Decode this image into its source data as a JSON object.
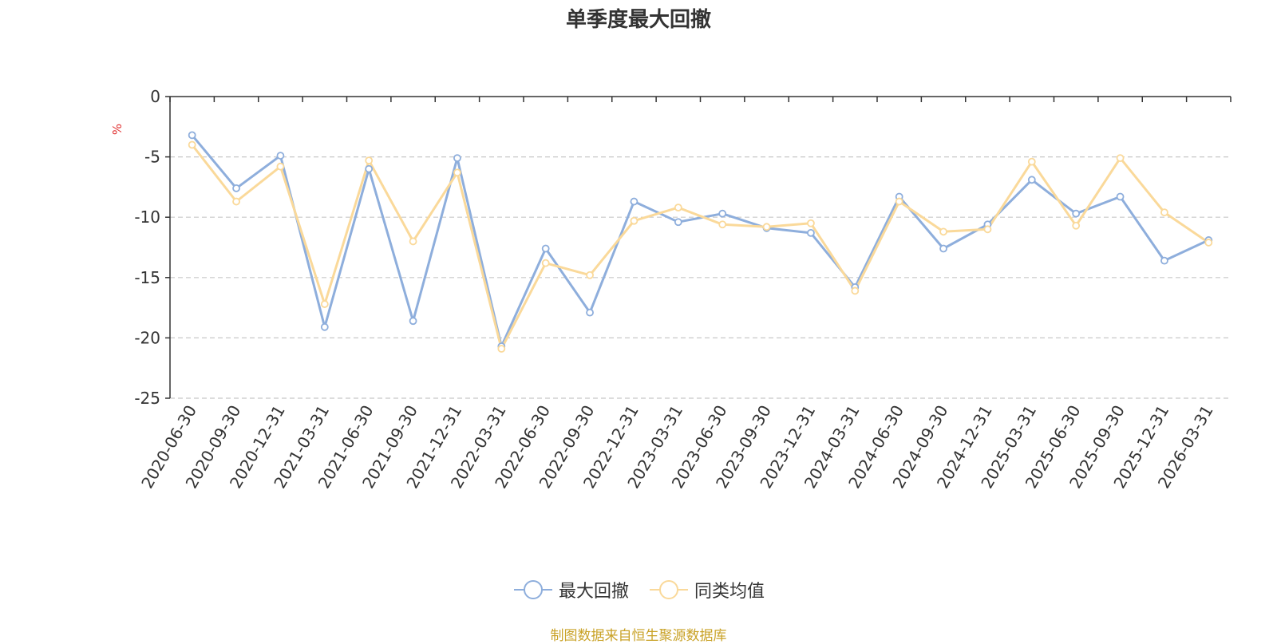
{
  "chart_data": {
    "type": "line",
    "title": "单季度最大回撤",
    "ylabel": "%",
    "ylim": [
      -25,
      0
    ],
    "yticks": [
      0,
      -5,
      -10,
      -15,
      -20,
      -25
    ],
    "grid": true,
    "legend_position": "bottom",
    "categories": [
      "2020-06-30",
      "2020-09-30",
      "2020-12-31",
      "2021-03-31",
      "2021-06-30",
      "2021-09-30",
      "2021-12-31",
      "2022-03-31",
      "2022-06-30",
      "2022-09-30",
      "2022-12-31",
      "2023-03-31",
      "2023-06-30",
      "2023-09-30",
      "2023-12-31",
      "2024-03-31",
      "2024-06-30",
      "2024-09-30",
      "2024-12-31",
      "2025-03-31",
      "2025-06-30",
      "2025-09-30",
      "2025-12-31",
      "2026-03-31"
    ],
    "series": [
      {
        "name": "最大回撤",
        "color": "#8eaedc",
        "values": [
          -3.2,
          -7.6,
          -4.9,
          -19.1,
          -6.0,
          -18.6,
          -5.1,
          -20.7,
          -12.6,
          -17.9,
          -8.7,
          -10.4,
          -9.7,
          -10.9,
          -11.3,
          -15.8,
          -8.3,
          -12.6,
          -10.6,
          -6.9,
          -9.7,
          -8.3,
          -13.6,
          -11.9
        ]
      },
      {
        "name": "同类均值",
        "color": "#fad99a",
        "values": [
          -4.0,
          -8.7,
          -5.8,
          -17.2,
          -5.3,
          -12.0,
          -6.3,
          -20.9,
          -13.8,
          -14.8,
          -10.3,
          -9.2,
          -10.6,
          -10.8,
          -10.5,
          -16.1,
          -8.7,
          -11.2,
          -11.0,
          -5.4,
          -10.7,
          -5.1,
          -9.6,
          -12.1
        ]
      }
    ],
    "source": "制图数据来自恒生聚源数据库"
  }
}
